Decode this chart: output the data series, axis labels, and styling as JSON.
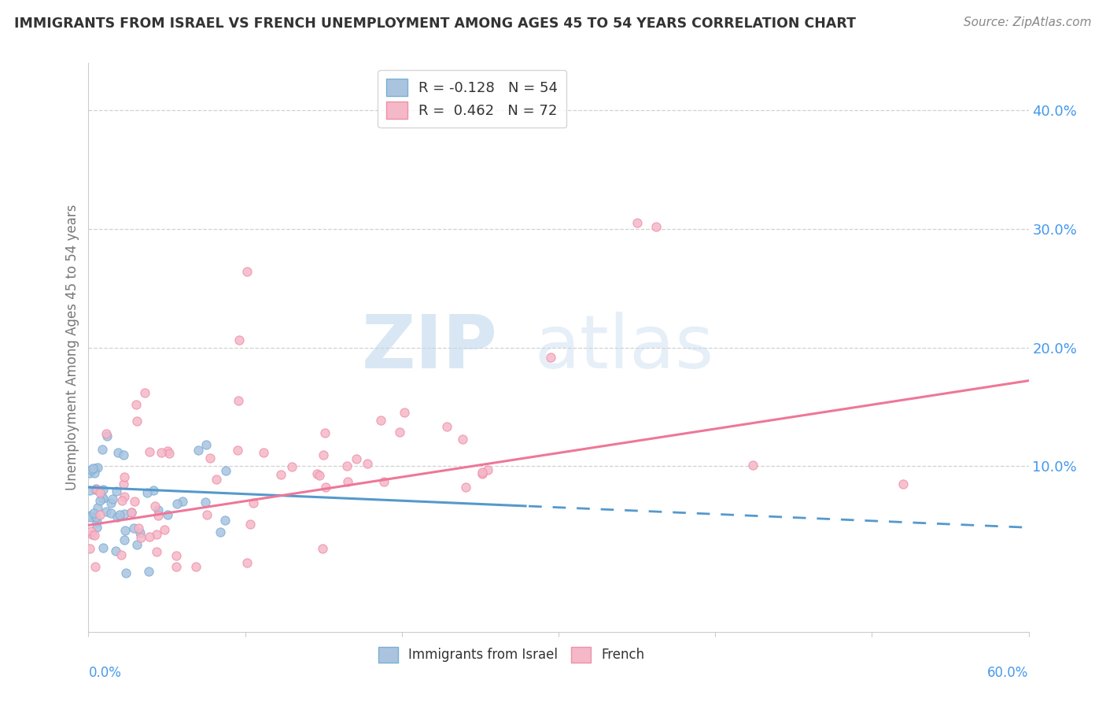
{
  "title": "IMMIGRANTS FROM ISRAEL VS FRENCH UNEMPLOYMENT AMONG AGES 45 TO 54 YEARS CORRELATION CHART",
  "source": "Source: ZipAtlas.com",
  "ylabel": "Unemployment Among Ages 45 to 54 years",
  "right_ytick_vals": [
    0.1,
    0.2,
    0.3,
    0.4
  ],
  "right_ytick_labels": [
    "10.0%",
    "20.0%",
    "30.0%",
    "40.0%"
  ],
  "R_israel": -0.128,
  "N_israel": 54,
  "R_french": 0.462,
  "N_french": 72,
  "color_israel_fill": "#aac4e0",
  "color_israel_edge": "#7aafd4",
  "color_french_fill": "#f4b8c8",
  "color_french_edge": "#f090a8",
  "color_israel_line": "#5599cc",
  "color_french_line": "#ee7799",
  "color_title": "#333333",
  "color_source": "#888888",
  "color_axis_label": "#777777",
  "color_tick_blue": "#4499ee",
  "background_color": "#ffffff",
  "xlim": [
    0.0,
    0.6
  ],
  "ylim": [
    -0.04,
    0.44
  ],
  "watermark_zip": "ZIP",
  "watermark_atlas": "atlas",
  "legend_top_label_israel": "R = -0.128   N = 54",
  "legend_top_label_french": "R =  0.462   N = 72",
  "legend_bottom_label_israel": "Immigrants from Israel",
  "legend_bottom_label_french": "French",
  "french_line_start_y": 0.05,
  "french_line_end_y": 0.172,
  "israel_line_start_y": 0.082,
  "israel_line_end_y": 0.048
}
